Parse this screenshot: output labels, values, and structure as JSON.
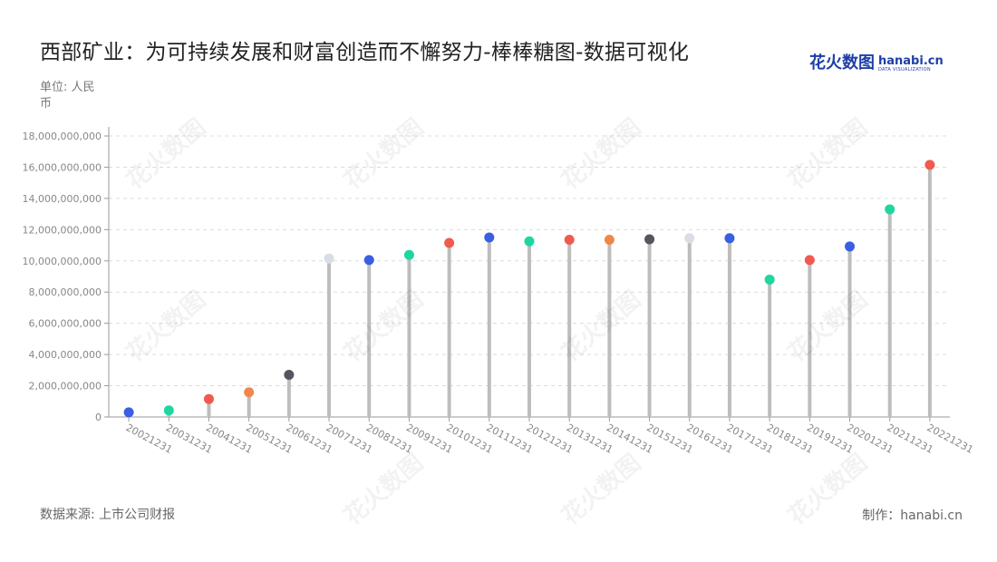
{
  "title": "西部矿业：为可持续发展和财富创造而不懈努力-棒棒糖图-数据可视化",
  "brand": {
    "cn": "花火数图",
    "en": "hanabi.cn",
    "en_sub": "DATA VISUALIZATION"
  },
  "unit_label": "单位: 人民币",
  "source_label": "数据来源: 上市公司财报",
  "credit_label": "制作：hanabi.cn",
  "watermark_text": "花火数图",
  "chart_data": {
    "type": "lollipop",
    "categories": [
      "20021231",
      "20031231",
      "20041231",
      "20051231",
      "20061231",
      "20071231",
      "20081231",
      "20091231",
      "20101231",
      "20111231",
      "20121231",
      "20131231",
      "20141231",
      "20151231",
      "20161231",
      "20171231",
      "20181231",
      "20191231",
      "20201231",
      "20211231",
      "20221231"
    ],
    "values": [
      300000000,
      420000000,
      1150000000,
      1580000000,
      2700000000,
      10150000000,
      10050000000,
      10380000000,
      11150000000,
      11500000000,
      11250000000,
      11350000000,
      11350000000,
      11380000000,
      11450000000,
      11450000000,
      8800000000,
      10050000000,
      10920000000,
      13300000000,
      16150000000
    ],
    "colors": [
      "#3a5fe0",
      "#1fd6a0",
      "#f05a4f",
      "#f0874a",
      "#555560",
      "#d9dde6",
      "#3a5fe0",
      "#1fd6a0",
      "#f05a4f",
      "#3a5fe0",
      "#1fd6a0",
      "#f05a4f",
      "#f0874a",
      "#555560",
      "#d9dde6",
      "#3a5fe0",
      "#1fd6a0",
      "#f05a4f",
      "#3a5fe0",
      "#1fd6a0",
      "#f05a4f"
    ],
    "stem_color": "#bdbdbd",
    "ylim": [
      0,
      18000000000
    ],
    "yticks": [
      0,
      2000000000,
      4000000000,
      6000000000,
      8000000000,
      10000000000,
      12000000000,
      14000000000,
      16000000000,
      18000000000
    ],
    "ytick_labels": [
      "0",
      "2,000,000,000",
      "4,000,000,000",
      "6,000,000,000",
      "8,000,000,000",
      "10,000,000,000",
      "12,000,000,000",
      "14,000,000,000",
      "16,000,000,000",
      "18,000,000,000"
    ],
    "grid": true,
    "legend": "none"
  }
}
